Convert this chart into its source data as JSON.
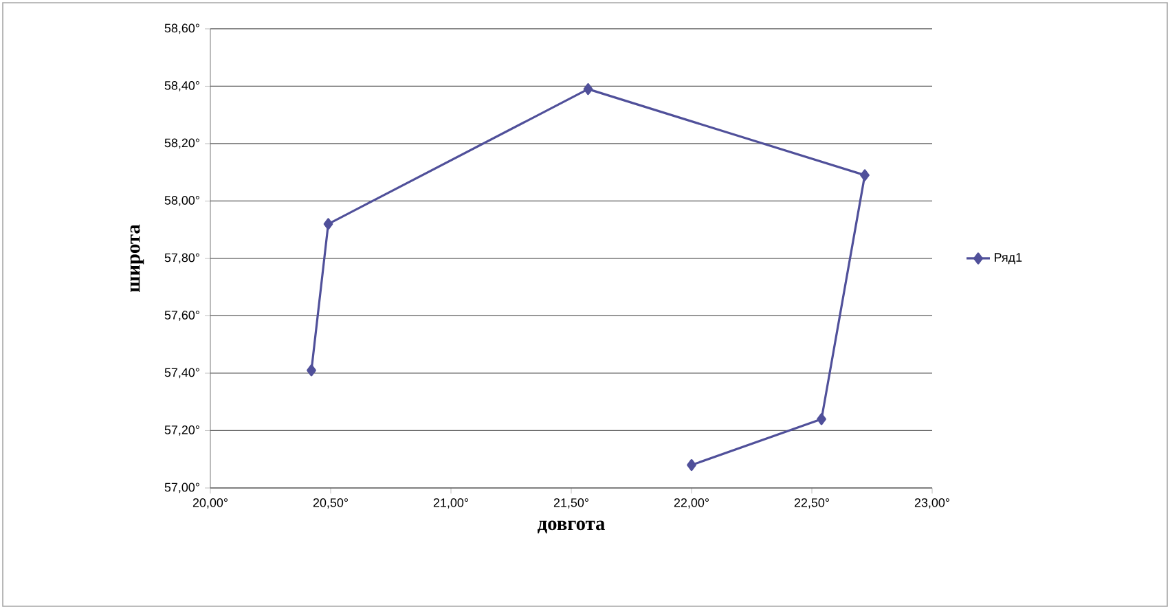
{
  "chart_data": {
    "type": "line",
    "xlabel": "довгота",
    "ylabel": "широта",
    "series": [
      {
        "name": "Ряд1",
        "color": "#50509a",
        "x": [
          22.0,
          22.54,
          22.72,
          21.57,
          20.49,
          20.42
        ],
        "values": [
          57.08,
          57.24,
          58.09,
          58.39,
          57.92,
          57.41
        ]
      }
    ],
    "xlim": [
      20,
      23
    ],
    "ylim": [
      57,
      58.6
    ],
    "xticks": [
      {
        "value": 20,
        "label": "20,00°"
      },
      {
        "value": 20.5,
        "label": "20,50°"
      },
      {
        "value": 21,
        "label": "21,00°"
      },
      {
        "value": 21.5,
        "label": "21,50°"
      },
      {
        "value": 22,
        "label": "22,00°"
      },
      {
        "value": 22.5,
        "label": "22,50°"
      },
      {
        "value": 23,
        "label": "23,00°"
      }
    ],
    "yticks": [
      {
        "value": 57,
        "label": "57,00°"
      },
      {
        "value": 57.2,
        "label": "57,20°"
      },
      {
        "value": 57.4,
        "label": "57,40°"
      },
      {
        "value": 57.6,
        "label": "57,60°"
      },
      {
        "value": 57.8,
        "label": "57,80°"
      },
      {
        "value": 58,
        "label": "58,00°"
      },
      {
        "value": 58.2,
        "label": "58,20°"
      },
      {
        "value": 58.4,
        "label": "58,40°"
      },
      {
        "value": 58.6,
        "label": "58,60°"
      }
    ],
    "grid": "y",
    "legend": "right",
    "marker": "diamond",
    "line_style": "solid"
  }
}
